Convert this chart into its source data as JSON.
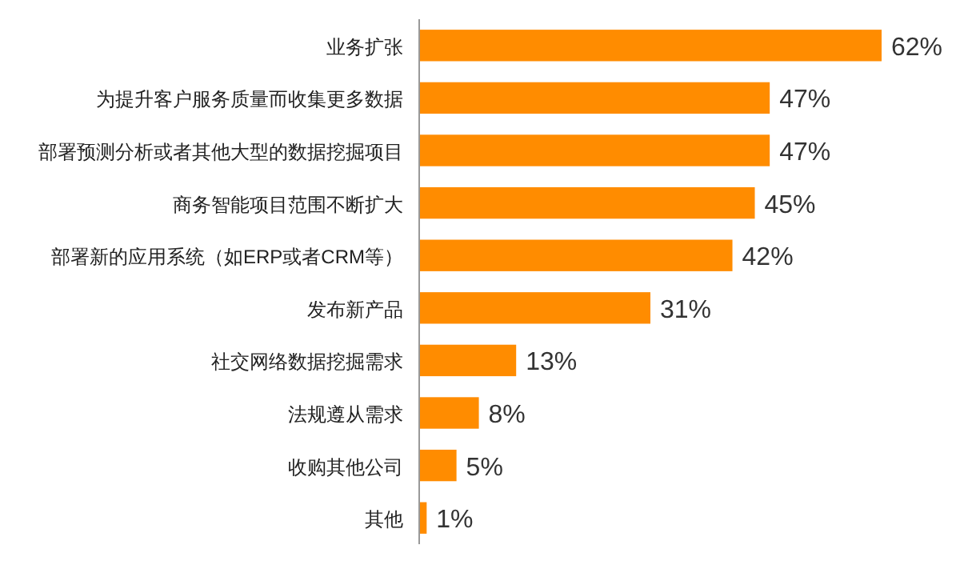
{
  "chart_data": {
    "type": "bar",
    "orientation": "horizontal",
    "categories": [
      "业务扩张",
      "为提升客户服务质量而收集更多数据",
      "部署预测分析或者其他大型的数据挖掘项目",
      "商务智能项目范围不断扩大",
      "部署新的应用系统（如ERP或者CRM等）",
      "发布新产品",
      "社交网络数据挖掘需求",
      "法规遵从需求",
      "收购其他公司",
      "其他"
    ],
    "values": [
      62,
      47,
      47,
      45,
      42,
      31,
      13,
      8,
      5,
      1
    ],
    "value_labels": [
      "62%",
      "47%",
      "47%",
      "45%",
      "42%",
      "31%",
      "13%",
      "8%",
      "5%",
      "1%"
    ],
    "color": "#ff8c00"
  }
}
